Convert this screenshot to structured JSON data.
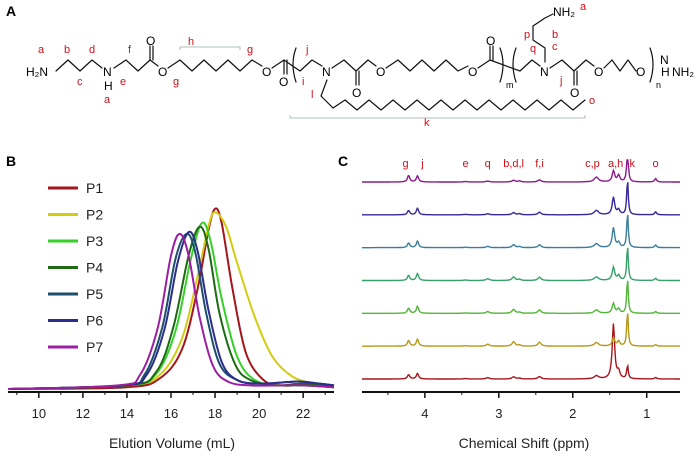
{
  "panel_labels": {
    "a": "A",
    "b": "B",
    "c": "C"
  },
  "structure": {
    "atoms": {
      "h2n_left": "H₂N",
      "nh_left": "N",
      "h_left": "H",
      "o_ester": "O",
      "o_carbonyl": "O",
      "n_mid": "N",
      "n_right": "N",
      "nh_right": "N",
      "h_right": "H",
      "nh2_right": "NH₂",
      "nh2_top": "NH₂"
    },
    "repeat_labels": {
      "m": "m",
      "n": "n"
    },
    "proton_labels": {
      "a": "a",
      "b": "b",
      "c": "c",
      "d": "d",
      "e": "e",
      "f": "f",
      "g": "g",
      "h": "h",
      "i": "i",
      "j": "j",
      "k": "k",
      "l": "l",
      "o": "o",
      "p": "p",
      "q": "q"
    }
  },
  "chart_data": [
    {
      "type": "line",
      "title": "",
      "xlabel": "Elution Volume (mL)",
      "ylabel": "",
      "xlim": [
        8.6,
        23.4
      ],
      "ylim": [
        0,
        1.22
      ],
      "xticks": [
        "10",
        "12",
        "14",
        "16",
        "18",
        "20",
        "22"
      ],
      "xtick_values": [
        10,
        12,
        14,
        16,
        18,
        20,
        22
      ],
      "legend_position": "top-left",
      "series": [
        {
          "name": "P1",
          "color": "#a5151c",
          "peak_x": 18.0,
          "peak_y": 1.0,
          "x": [
            8.6,
            14.0,
            15.5,
            16.5,
            17.2,
            17.7,
            18.0,
            18.3,
            18.8,
            19.4,
            20.2,
            21.0,
            22.0,
            23.4
          ],
          "y": [
            0.0,
            0.01,
            0.06,
            0.22,
            0.55,
            0.88,
            1.0,
            0.92,
            0.55,
            0.2,
            0.05,
            0.02,
            0.02,
            0.01
          ]
        },
        {
          "name": "P2",
          "color": "#d4cc10",
          "peak_x": 18.0,
          "peak_y": 0.98,
          "x": [
            8.6,
            14.0,
            15.5,
            16.5,
            17.2,
            17.7,
            18.0,
            18.5,
            19.0,
            19.8,
            20.6,
            21.5,
            22.5,
            23.4
          ],
          "y": [
            0.0,
            0.02,
            0.08,
            0.28,
            0.62,
            0.9,
            0.98,
            0.9,
            0.7,
            0.4,
            0.18,
            0.07,
            0.03,
            0.02
          ]
        },
        {
          "name": "P3",
          "color": "#36d02a",
          "peak_x": 17.4,
          "peak_y": 0.92,
          "x": [
            8.6,
            14.0,
            15.3,
            16.2,
            16.9,
            17.4,
            17.8,
            18.3,
            19.0,
            19.8,
            21.0,
            22.0,
            23.4
          ],
          "y": [
            0.0,
            0.02,
            0.08,
            0.32,
            0.72,
            0.92,
            0.82,
            0.5,
            0.18,
            0.05,
            0.02,
            0.02,
            0.01
          ]
        },
        {
          "name": "P4",
          "color": "#1d6a12",
          "peak_x": 17.3,
          "peak_y": 0.9,
          "x": [
            8.6,
            14.0,
            15.3,
            16.1,
            16.8,
            17.3,
            17.7,
            18.2,
            18.9,
            19.6,
            20.8,
            22.0,
            23.4
          ],
          "y": [
            0.0,
            0.02,
            0.09,
            0.34,
            0.74,
            0.9,
            0.78,
            0.42,
            0.14,
            0.05,
            0.02,
            0.03,
            0.01
          ]
        },
        {
          "name": "P5",
          "color": "#1e4e6b",
          "peak_x": 16.7,
          "peak_y": 0.86,
          "x": [
            8.6,
            13.8,
            14.8,
            15.6,
            16.2,
            16.7,
            17.1,
            17.6,
            18.2,
            19.0,
            20.0,
            21.5,
            22.0,
            23.4
          ],
          "y": [
            0.0,
            0.02,
            0.08,
            0.34,
            0.72,
            0.86,
            0.76,
            0.42,
            0.14,
            0.05,
            0.03,
            0.04,
            0.04,
            0.02
          ]
        },
        {
          "name": "P6",
          "color": "#2a2e8c",
          "peak_x": 16.8,
          "peak_y": 0.87,
          "x": [
            8.6,
            13.8,
            14.9,
            15.7,
            16.3,
            16.8,
            17.2,
            17.7,
            18.3,
            19.0,
            20.0,
            21.5,
            22.0,
            23.4
          ],
          "y": [
            0.0,
            0.02,
            0.08,
            0.33,
            0.7,
            0.87,
            0.77,
            0.44,
            0.15,
            0.05,
            0.03,
            0.04,
            0.04,
            0.02
          ]
        },
        {
          "name": "P7",
          "color": "#9b1ea3",
          "peak_x": 16.4,
          "peak_y": 0.86,
          "x": [
            8.6,
            13.6,
            14.6,
            15.4,
            16.0,
            16.4,
            16.8,
            17.3,
            17.9,
            18.6,
            19.6,
            21.0,
            22.0,
            23.4
          ],
          "y": [
            0.0,
            0.02,
            0.08,
            0.34,
            0.74,
            0.86,
            0.74,
            0.4,
            0.13,
            0.04,
            0.02,
            0.02,
            0.02,
            0.01
          ]
        }
      ]
    },
    {
      "type": "line",
      "title": "",
      "xlabel": "Chemical Shift (ppm)",
      "ylabel": "",
      "x_reversed": true,
      "xlim": [
        4.85,
        0.55
      ],
      "xticks": [
        "4",
        "3",
        "2",
        "1"
      ],
      "xtick_values": [
        4,
        3,
        2,
        1
      ],
      "peak_annotations": [
        {
          "label": "g",
          "ppm": 4.22
        },
        {
          "label": "j",
          "ppm": 4.1
        },
        {
          "label": "e",
          "ppm": 3.45
        },
        {
          "label": "q",
          "ppm": 3.15
        },
        {
          "label": "b,d,l",
          "ppm": 2.8
        },
        {
          "label": "f,i",
          "ppm": 2.45
        },
        {
          "label": "c,p",
          "ppm": 1.68
        },
        {
          "label": "a,h",
          "ppm": 1.42
        },
        {
          "label": "k",
          "ppm": 1.25
        },
        {
          "label": "o",
          "ppm": 0.88
        }
      ],
      "peak_positions_ppm": [
        4.22,
        4.1,
        3.45,
        3.15,
        2.8,
        2.72,
        2.45,
        1.68,
        1.45,
        1.38,
        1.26,
        0.88
      ],
      "series": [
        {
          "name": "P1",
          "color": "#a5151c",
          "intensities": [
            0.2,
            0.25,
            0.02,
            0.06,
            0.1,
            0.04,
            0.11,
            0.14,
            2.5,
            0.3,
            0.6,
            0.07
          ]
        },
        {
          "name": "P2",
          "color": "#b59818",
          "intensities": [
            0.26,
            0.32,
            0.02,
            0.09,
            0.2,
            0.05,
            0.18,
            0.16,
            0.38,
            0.22,
            1.6,
            0.07
          ]
        },
        {
          "name": "P3",
          "color": "#52b638",
          "intensities": [
            0.24,
            0.32,
            0.02,
            0.08,
            0.18,
            0.05,
            0.16,
            0.15,
            0.45,
            0.2,
            1.6,
            0.08
          ]
        },
        {
          "name": "P4",
          "color": "#35a06a",
          "intensities": [
            0.24,
            0.32,
            0.02,
            0.08,
            0.16,
            0.05,
            0.15,
            0.16,
            0.6,
            0.22,
            1.6,
            0.1
          ]
        },
        {
          "name": "P5",
          "color": "#3a7d9a",
          "intensities": [
            0.22,
            0.3,
            0.02,
            0.06,
            0.13,
            0.05,
            0.13,
            0.18,
            0.9,
            0.22,
            1.6,
            0.12
          ]
        },
        {
          "name": "P6",
          "color": "#34289a",
          "intensities": [
            0.2,
            0.3,
            0.02,
            0.05,
            0.1,
            0.05,
            0.12,
            0.2,
            0.8,
            0.22,
            1.6,
            0.14
          ]
        },
        {
          "name": "P7",
          "color": "#8a1a8a",
          "intensities": [
            0.3,
            0.28,
            0.02,
            0.04,
            0.08,
            0.05,
            0.1,
            0.22,
            0.5,
            0.3,
            1.6,
            0.16
          ]
        }
      ]
    }
  ]
}
